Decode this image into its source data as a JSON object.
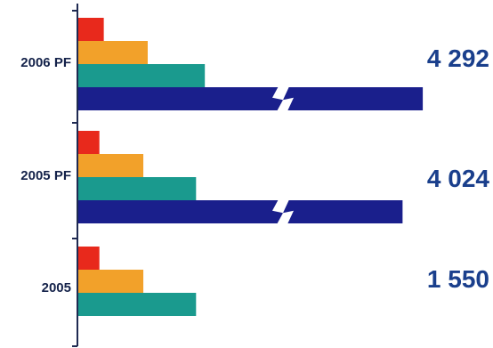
{
  "chart_data": {
    "type": "bar",
    "orientation": "horizontal",
    "categories": [
      "2006 PF",
      "2005 PF",
      "2005"
    ],
    "totals": [
      "4 292",
      "4 024",
      "1 550"
    ],
    "series": [
      {
        "color": "#e8291c",
        "values": [
          30,
          25,
          25
        ]
      },
      {
        "color": "#f2a12a",
        "values": [
          80,
          75,
          75
        ]
      },
      {
        "color": "#1a9a8e",
        "values": [
          145,
          135,
          135
        ]
      },
      {
        "color": "#1a1f8c",
        "values": [
          393,
          370,
          null
        ]
      }
    ],
    "axis_break_series": 3,
    "xlim": [
      0,
      400
    ],
    "grid": false,
    "legend": "none"
  }
}
